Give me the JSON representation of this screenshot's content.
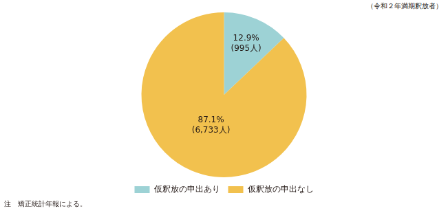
{
  "chart_data": {
    "type": "pie",
    "subtitle": "（令和２年満期釈放者）",
    "categories": [
      "仮釈放の申出あり",
      "仮釈放の申出なし"
    ],
    "values": [
      12.9,
      87.1
    ],
    "value_labels": [
      [
        "12.9%",
        "(995人)"
      ],
      [
        "87.1%",
        "(6,733人)"
      ]
    ],
    "colors": [
      "#9dd2d5",
      "#f2c14e"
    ],
    "data_labels": true,
    "legend": "bottom",
    "note": "注　矯正統計年報による。"
  }
}
